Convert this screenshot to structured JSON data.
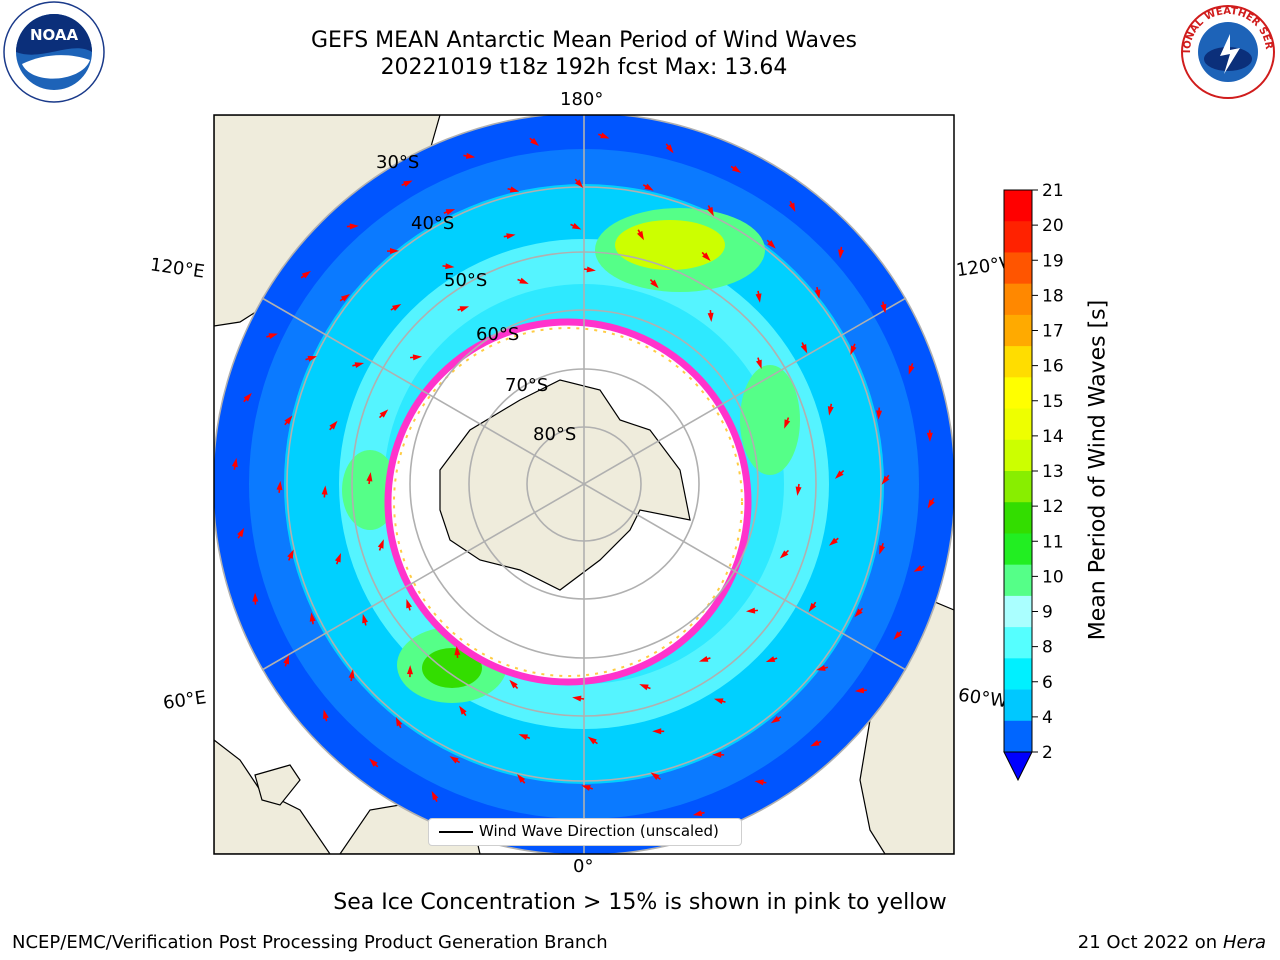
{
  "title": {
    "line1": "GEFS MEAN Antarctic Mean Period of Wind Waves",
    "line2": "20221019 t18z 192h fcst   Max: 13.64"
  },
  "logos": {
    "left": "NOAA",
    "right": "NATIONAL WEATHER SERVICE"
  },
  "map": {
    "projection": "south polar stereographic",
    "longitude_labels": [
      "180°",
      "120°E",
      "120°W",
      "60°E",
      "60°W",
      "0°"
    ],
    "latitude_labels": [
      "30°S",
      "40°S",
      "50°S",
      "60°S",
      "70°S",
      "80°S"
    ],
    "legend_entry": "Wind Wave Direction (unscaled)",
    "arrow_color": "#ff0000",
    "land_color": "#efecdc",
    "ice_edge_colors": [
      "#ff33cc",
      "#ffaa33",
      "#ffdd44"
    ]
  },
  "colorbar": {
    "label": "Mean Period of Wind Waves [s]",
    "ticks": [
      "2",
      "4",
      "6",
      "8",
      "9",
      "10",
      "11",
      "12",
      "13",
      "14",
      "15",
      "16",
      "17",
      "18",
      "19",
      "20",
      "21"
    ],
    "colors": [
      "#0066ff",
      "#00c8ff",
      "#00f0ff",
      "#55ffff",
      "#aaffff",
      "#55ff88",
      "#22ee22",
      "#33dd00",
      "#88ee00",
      "#ccff00",
      "#eeff00",
      "#ffff00",
      "#ffdd00",
      "#ffaa00",
      "#ff8800",
      "#ff5500",
      "#ff2200",
      "#ff0000"
    ],
    "under_color": "#0000ff"
  },
  "footer": {
    "note": "Sea Ice Concentration > 15% is shown in pink to yellow",
    "left": "NCEP/EMC/Verification Post Processing Product Generation Branch",
    "right_date": "21 Oct 2022 on ",
    "right_machine": "Hera"
  }
}
